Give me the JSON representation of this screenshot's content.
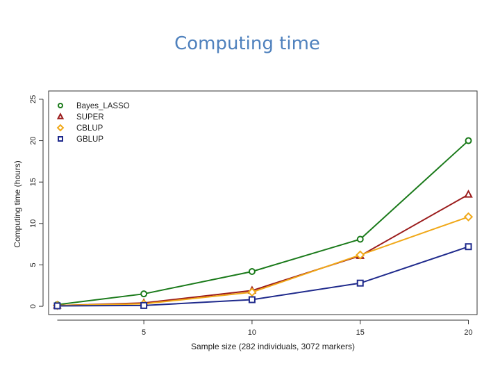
{
  "slide": {
    "title": "Computing time"
  },
  "chart_data": {
    "type": "line",
    "xlabel": "Sample size (282 individuals, 3072 markers)",
    "ylabel": "Computing time (hours)",
    "x": [
      1,
      5,
      10,
      15,
      20
    ],
    "xticks": [
      5,
      10,
      15,
      20
    ],
    "yticks": [
      0,
      5,
      10,
      15,
      20,
      25
    ],
    "xlim": [
      0.6,
      20.4
    ],
    "ylim": [
      -1,
      26
    ],
    "grid": false,
    "legend_position": "top-left",
    "series": [
      {
        "name": "Bayes_LASSO",
        "color": "#1a7a1a",
        "marker": "circle",
        "values": [
          0.2,
          1.5,
          4.2,
          8.1,
          20.0
        ]
      },
      {
        "name": "SUPER",
        "color": "#9b1c1c",
        "marker": "triangle",
        "values": [
          0.1,
          0.4,
          1.9,
          6.1,
          13.5
        ]
      },
      {
        "name": "CBLUP",
        "color": "#f0a818",
        "marker": "diamond",
        "values": [
          0.1,
          0.3,
          1.7,
          6.2,
          10.8
        ]
      },
      {
        "name": "GBLUP",
        "color": "#1f2a8c",
        "marker": "square",
        "values": [
          0.05,
          0.1,
          0.8,
          2.8,
          7.2
        ]
      }
    ]
  }
}
